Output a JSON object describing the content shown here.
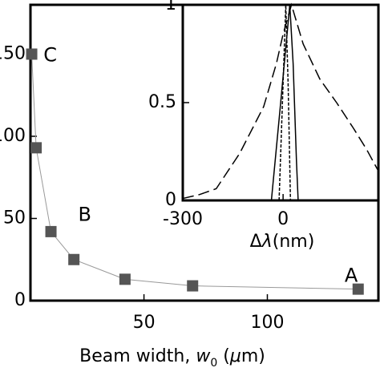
{
  "chart_data": [
    {
      "type": "line",
      "x_label": {
        "text": "Beam width, ",
        "var": "w",
        "sub": "0",
        "open": " (",
        "unit_var": "μ",
        "unit": "m)"
      },
      "x": [
        4.5,
        6.3,
        12.3,
        21.6,
        42.3,
        69.7,
        136.8
      ],
      "series": [
        {
          "color": "#555555",
          "line_color": "#999999",
          "values": [
            150,
            93,
            42,
            25,
            13,
            9,
            7
          ]
        }
      ],
      "annotations": [
        {
          "text": "C",
          "x": 12,
          "y": 149
        },
        {
          "text": "B",
          "x": 26,
          "y": 52
        },
        {
          "text": "A",
          "x": 134,
          "y": 15
        }
      ],
      "xlim": [
        4,
        145
      ],
      "xticks": [
        50,
        100
      ],
      "ylim": [
        0,
        180
      ],
      "yticks": [
        0,
        50,
        100,
        150
      ]
    },
    {
      "type": "line",
      "x_label": {
        "pre": "Δ",
        "var": "λ",
        "post": "(nm)"
      },
      "xlim": [
        -300,
        285
      ],
      "xticks": [
        -300,
        0
      ],
      "ylim": [
        0,
        1
      ],
      "yticks": [
        0,
        0.5,
        1
      ],
      "series": [
        {
          "style": "long-dash",
          "color": "#000000",
          "x": [
            -300,
            -250,
            -200,
            -130,
            -58,
            -20,
            0,
            25,
            60,
            110,
            160,
            210,
            250,
            285
          ],
          "values": [
            0.01,
            0.03,
            0.06,
            0.24,
            0.48,
            0.7,
            0.85,
            1,
            0.8,
            0.62,
            0.5,
            0.37,
            0.26,
            0.15
          ]
        },
        {
          "style": "solid",
          "color": "#000000",
          "x": [
            -35,
            -10,
            20,
            30,
            40,
            45
          ],
          "values": [
            0,
            0.45,
            1,
            0.7,
            0.2,
            0
          ]
        },
        {
          "style": "short-dash",
          "color": "#000000",
          "x": [
            -12,
            0,
            8,
            15,
            22
          ],
          "values": [
            0,
            0.6,
            1,
            0.6,
            0
          ]
        }
      ]
    }
  ]
}
